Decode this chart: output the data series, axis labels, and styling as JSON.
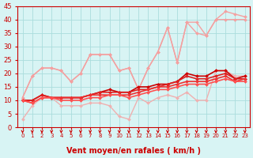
{
  "x": [
    0,
    1,
    2,
    3,
    4,
    5,
    6,
    7,
    8,
    9,
    10,
    11,
    12,
    13,
    14,
    15,
    16,
    17,
    18,
    19,
    20,
    21,
    22,
    23
  ],
  "series": [
    {
      "name": "light_pink_line1",
      "color": "#f4a0a0",
      "lw": 1.0,
      "marker": "D",
      "ms": 2.0,
      "y": [
        11,
        19,
        22,
        22,
        21,
        17,
        20,
        27,
        27,
        27,
        21,
        22,
        14,
        22,
        28,
        37,
        24,
        39,
        39,
        34,
        40,
        43,
        42,
        41
      ]
    },
    {
      "name": "light_pink_line2",
      "color": "#f4a0a0",
      "lw": 1.0,
      "marker": "D",
      "ms": 2.0,
      "y": [
        11,
        19,
        22,
        22,
        21,
        17,
        20,
        27,
        27,
        27,
        21,
        22,
        14,
        22,
        28,
        37,
        24,
        39,
        35,
        34,
        40,
        40,
        40,
        40
      ]
    },
    {
      "name": "light_pink_line3",
      "color": "#f0b0b0",
      "lw": 1.0,
      "marker": "D",
      "ms": 2.0,
      "y": [
        3,
        8,
        11,
        11,
        8,
        8,
        8,
        9,
        9,
        8,
        4,
        3,
        11,
        9,
        11,
        12,
        11,
        13,
        10,
        10,
        21,
        21,
        19,
        19
      ]
    },
    {
      "name": "red_line1",
      "color": "#cc0000",
      "lw": 1.2,
      "marker": "D",
      "ms": 2.0,
      "y": [
        10,
        10,
        12,
        11,
        11,
        11,
        11,
        12,
        13,
        14,
        13,
        13,
        15,
        15,
        16,
        16,
        17,
        20,
        19,
        19,
        21,
        21,
        18,
        19
      ]
    },
    {
      "name": "red_line2",
      "color": "#dd2020",
      "lw": 1.2,
      "marker": "D",
      "ms": 2.0,
      "y": [
        10,
        10,
        12,
        11,
        11,
        11,
        11,
        12,
        13,
        13,
        13,
        13,
        14,
        14,
        15,
        16,
        17,
        19,
        18,
        18,
        19,
        20,
        18,
        18
      ]
    },
    {
      "name": "red_line3",
      "color": "#ee3030",
      "lw": 1.2,
      "marker": "D",
      "ms": 2.0,
      "y": [
        10,
        9,
        11,
        11,
        11,
        11,
        11,
        12,
        12,
        12,
        12,
        12,
        13,
        14,
        15,
        15,
        16,
        17,
        17,
        17,
        18,
        19,
        17,
        18
      ]
    },
    {
      "name": "red_line4",
      "color": "#ff5050",
      "lw": 1.2,
      "marker": "D",
      "ms": 2.0,
      "y": [
        10,
        9,
        11,
        11,
        10,
        10,
        10,
        11,
        11,
        12,
        12,
        11,
        12,
        13,
        14,
        14,
        15,
        16,
        16,
        16,
        17,
        18,
        17,
        17
      ]
    }
  ],
  "xlabel": "Vent moyen/en rafales ( km/h )",
  "xlabel_color": "#cc0000",
  "xlabel_fontsize": 7,
  "ylim": [
    0,
    45
  ],
  "xlim": [
    -0.5,
    23.5
  ],
  "yticks": [
    0,
    5,
    10,
    15,
    20,
    25,
    30,
    35,
    40,
    45
  ],
  "xticks": [
    0,
    1,
    2,
    3,
    4,
    5,
    6,
    7,
    8,
    9,
    10,
    11,
    12,
    13,
    14,
    15,
    16,
    17,
    18,
    19,
    20,
    21,
    22,
    23
  ],
  "bg_color": "#d8f4f4",
  "grid_color": "#aadddd",
  "tick_color": "#cc0000",
  "arrow_color": "#cc0000",
  "ytick_fontsize": 6,
  "xtick_fontsize": 5
}
